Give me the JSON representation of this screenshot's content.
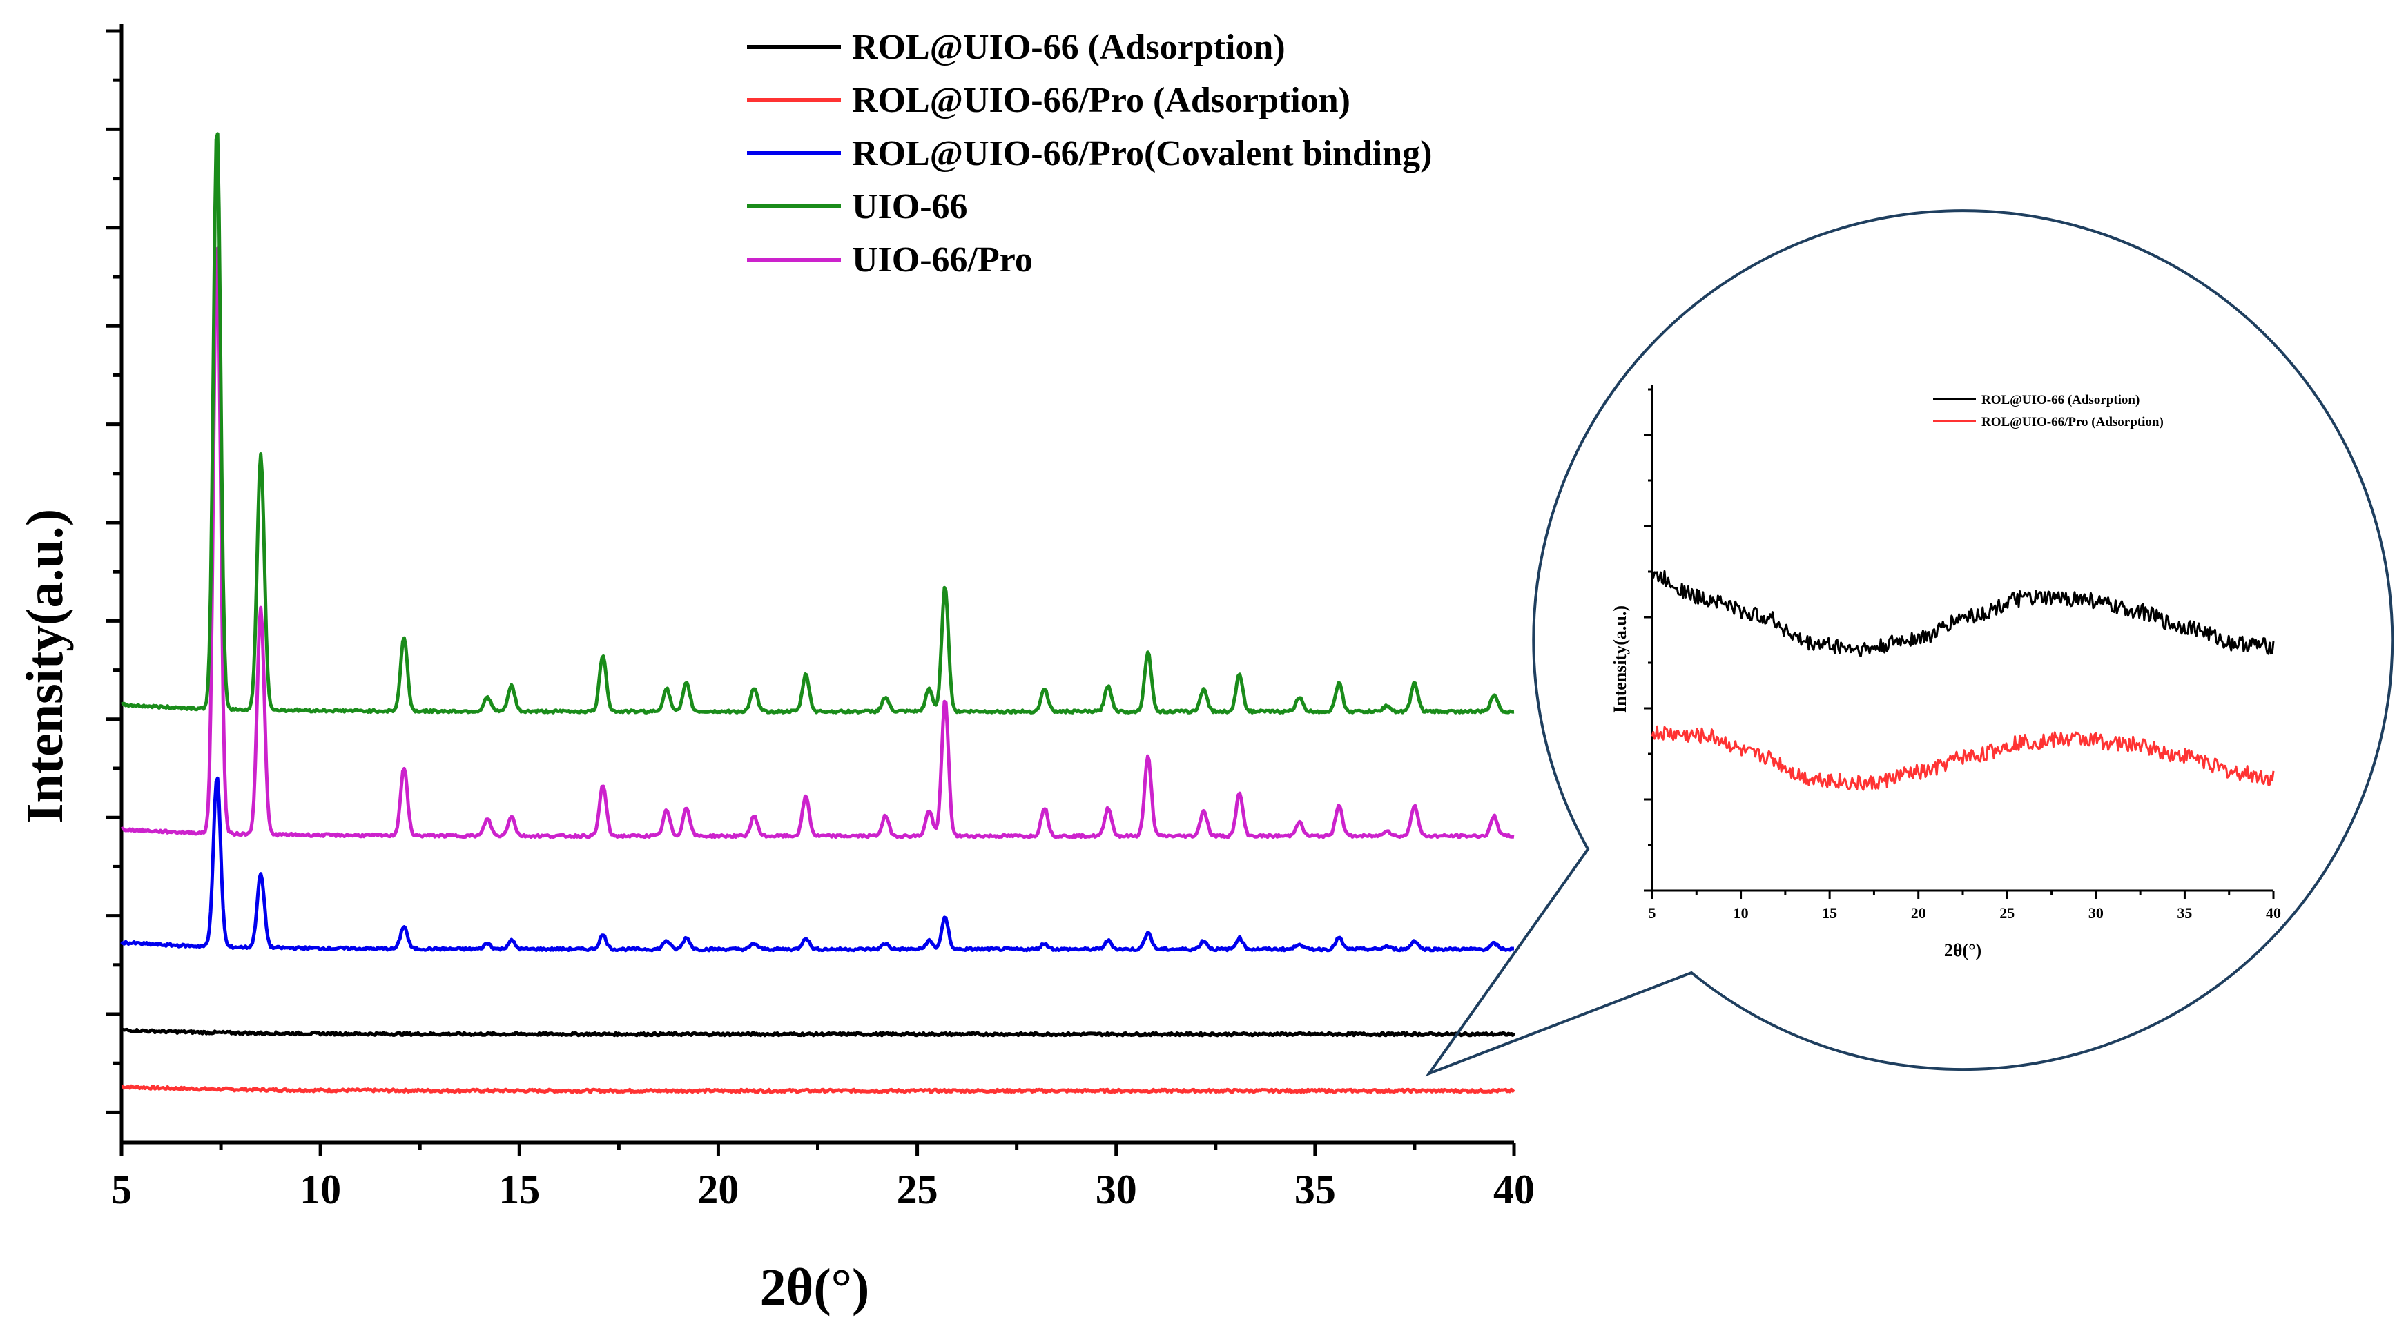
{
  "chart_data": [
    {
      "type": "line",
      "title": "",
      "xlabel": "2θ(°)",
      "ylabel": "Intensity(a.u.)",
      "xlim": [
        5,
        40
      ],
      "x_ticks": [
        "5",
        "10",
        "15",
        "20",
        "25",
        "30",
        "35",
        "40"
      ],
      "y_ticks_labeled": false,
      "legend_position": "top-center",
      "series": [
        {
          "name": "ROL@UIO-66 (Adsorption)",
          "color": "#000000",
          "baseline": 1.0,
          "peaks": []
        },
        {
          "name": "ROL@UIO-66/Pro (Adsorption)",
          "color": "#ff3333",
          "baseline": 0.0,
          "peaks": []
        },
        {
          "name": "ROL@UIO-66/Pro(Covalent binding)",
          "color": "#0000ee",
          "baseline": 2.5,
          "peaks": [
            [
              7.4,
              3.0
            ],
            [
              8.5,
              1.3
            ],
            [
              12.1,
              0.4
            ],
            [
              14.2,
              0.1
            ],
            [
              14.8,
              0.15
            ],
            [
              17.1,
              0.25
            ],
            [
              18.7,
              0.15
            ],
            [
              19.2,
              0.2
            ],
            [
              20.9,
              0.1
            ],
            [
              22.2,
              0.2
            ],
            [
              24.2,
              0.1
            ],
            [
              25.3,
              0.15
            ],
            [
              25.7,
              0.55
            ],
            [
              28.2,
              0.1
            ],
            [
              29.8,
              0.15
            ],
            [
              30.8,
              0.3
            ],
            [
              32.2,
              0.15
            ],
            [
              33.1,
              0.2
            ],
            [
              34.6,
              0.1
            ],
            [
              35.6,
              0.2
            ],
            [
              36.8,
              0.05
            ],
            [
              37.5,
              0.15
            ],
            [
              39.5,
              0.1
            ]
          ]
        },
        {
          "name": "UIO-66",
          "color": "#1a8c1a",
          "baseline": 6.7,
          "peaks": [
            [
              7.4,
              10.3
            ],
            [
              8.5,
              4.5
            ],
            [
              12.1,
              1.3
            ],
            [
              14.2,
              0.25
            ],
            [
              14.8,
              0.45
            ],
            [
              17.1,
              1.0
            ],
            [
              18.7,
              0.4
            ],
            [
              19.2,
              0.5
            ],
            [
              20.9,
              0.4
            ],
            [
              22.2,
              0.65
            ],
            [
              24.2,
              0.25
            ],
            [
              25.3,
              0.4
            ],
            [
              25.7,
              2.2
            ],
            [
              28.2,
              0.4
            ],
            [
              29.8,
              0.45
            ],
            [
              30.8,
              1.05
            ],
            [
              32.2,
              0.4
            ],
            [
              33.1,
              0.65
            ],
            [
              34.6,
              0.25
            ],
            [
              35.6,
              0.5
            ],
            [
              36.8,
              0.1
            ],
            [
              37.5,
              0.5
            ],
            [
              39.5,
              0.3
            ]
          ]
        },
        {
          "name": "UIO-66/Pro",
          "color": "#cc22cc",
          "baseline": 4.5,
          "peaks": [
            [
              7.4,
              10.5
            ],
            [
              8.5,
              4.0
            ],
            [
              12.1,
              1.2
            ],
            [
              14.2,
              0.3
            ],
            [
              14.8,
              0.35
            ],
            [
              17.1,
              0.9
            ],
            [
              18.7,
              0.45
            ],
            [
              19.2,
              0.5
            ],
            [
              20.9,
              0.35
            ],
            [
              22.2,
              0.7
            ],
            [
              24.2,
              0.35
            ],
            [
              25.3,
              0.45
            ],
            [
              25.7,
              2.4
            ],
            [
              28.2,
              0.5
            ],
            [
              29.8,
              0.5
            ],
            [
              30.8,
              1.4
            ],
            [
              32.2,
              0.45
            ],
            [
              33.1,
              0.75
            ],
            [
              34.6,
              0.25
            ],
            [
              35.6,
              0.55
            ],
            [
              36.8,
              0.1
            ],
            [
              37.5,
              0.55
            ],
            [
              39.5,
              0.35
            ]
          ]
        }
      ]
    },
    {
      "type": "line",
      "title": "",
      "xlabel": "2θ(°)",
      "ylabel": "Intensity(a.u.)",
      "xlim": [
        5,
        40
      ],
      "x_ticks": [
        "5",
        "10",
        "15",
        "20",
        "25",
        "30",
        "35",
        "40"
      ],
      "y_ticks_labeled": false,
      "legend_position": "top-center",
      "series": [
        {
          "name": "ROL@UIO-66 (Adsorption)",
          "color": "#000000",
          "points": [
            [
              5,
              5.6
            ],
            [
              8,
              5.2
            ],
            [
              11,
              4.9
            ],
            [
              14,
              4.4
            ],
            [
              17,
              4.3
            ],
            [
              20,
              4.5
            ],
            [
              23,
              4.9
            ],
            [
              26,
              5.2
            ],
            [
              29,
              5.2
            ],
            [
              32,
              5.0
            ],
            [
              35,
              4.7
            ],
            [
              38,
              4.4
            ],
            [
              40,
              4.35
            ]
          ]
        },
        {
          "name": "ROL@UIO-66/Pro (Adsorption)",
          "color": "#ff3333",
          "points": [
            [
              5,
              2.8
            ],
            [
              8,
              2.75
            ],
            [
              11,
              2.4
            ],
            [
              14,
              2.0
            ],
            [
              17,
              1.9
            ],
            [
              20,
              2.1
            ],
            [
              23,
              2.4
            ],
            [
              26,
              2.65
            ],
            [
              29,
              2.7
            ],
            [
              32,
              2.6
            ],
            [
              35,
              2.4
            ],
            [
              38,
              2.1
            ],
            [
              40,
              2.0
            ]
          ]
        }
      ]
    }
  ]
}
